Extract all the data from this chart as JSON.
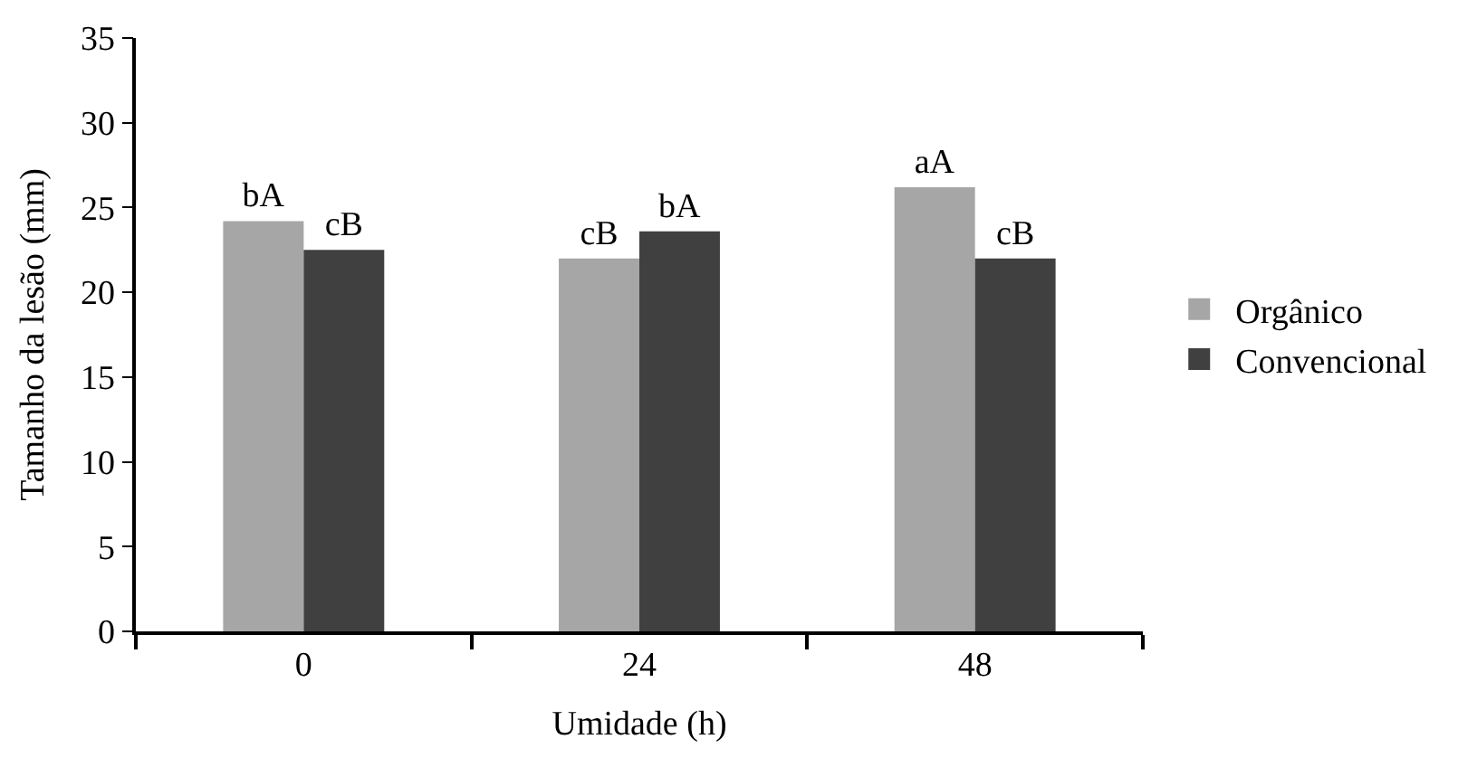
{
  "chart_data": {
    "type": "bar",
    "xlabel": "Umidade (h)",
    "ylabel": "Tamanho da lesão (mm)",
    "categories": [
      "0",
      "24",
      "48"
    ],
    "series": [
      {
        "name": "Orgânico",
        "color": "#a6a6a6",
        "values": [
          24.2,
          22.0,
          26.2
        ],
        "value_labels": [
          "bA",
          "cB",
          "aA"
        ]
      },
      {
        "name": "Convencional",
        "color": "#404040",
        "values": [
          22.5,
          23.6,
          22.0
        ],
        "value_labels": [
          "cB",
          "bA",
          "cB"
        ]
      }
    ],
    "ylim": [
      0,
      35
    ],
    "yticks": [
      0,
      5,
      10,
      15,
      20,
      25,
      30,
      35
    ],
    "legend": "right"
  }
}
